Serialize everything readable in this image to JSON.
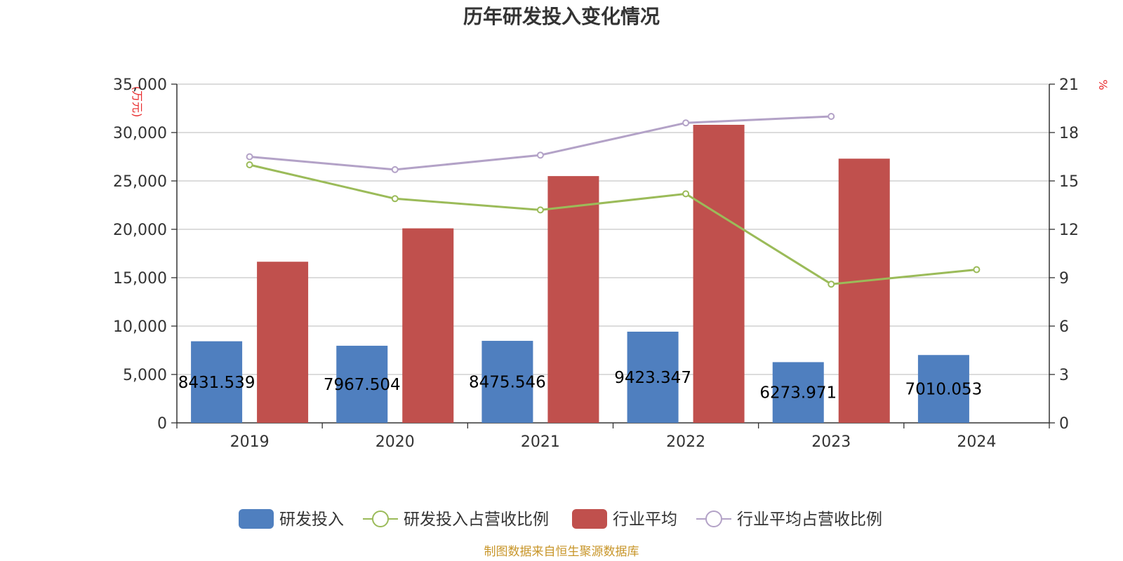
{
  "chart_data": {
    "type": "bar",
    "title": "历年研发投入变化情况",
    "categories": [
      "2019",
      "2020",
      "2021",
      "2022",
      "2023",
      "2024"
    ],
    "y_left": {
      "unit": "(万元)",
      "range": [
        0,
        35000
      ],
      "ticks": [
        "0",
        "5,000",
        "10,000",
        "15,000",
        "20,000",
        "25,000",
        "30,000",
        "35,000"
      ]
    },
    "y_right": {
      "unit": "%",
      "range": [
        0,
        21
      ],
      "ticks": [
        "0",
        "3",
        "6",
        "9",
        "12",
        "15",
        "18",
        "21"
      ]
    },
    "grid": true,
    "legend_position": "bottom",
    "series": [
      {
        "name": "研发投入",
        "type": "bar",
        "axis": "left",
        "color": "#4f7fbf",
        "values": [
          8431.539,
          7967.504,
          8475.546,
          9423.347,
          6273.971,
          7010.053
        ],
        "labels": [
          "8431.539",
          "7967.504",
          "8475.546",
          "9423.347",
          "6273.971",
          "7010.053"
        ]
      },
      {
        "name": "研发投入占营收比例",
        "type": "line",
        "axis": "right",
        "color": "#9bbb59",
        "values": [
          16.0,
          13.9,
          13.2,
          14.2,
          8.6,
          9.5
        ]
      },
      {
        "name": "行业平均",
        "type": "bar",
        "axis": "left",
        "color": "#c0504d",
        "values": [
          16650,
          20100,
          25500,
          30800,
          27300,
          null
        ]
      },
      {
        "name": "行业平均占营收比例",
        "type": "line",
        "axis": "right",
        "color": "#b3a2c7",
        "values": [
          16.5,
          15.7,
          16.6,
          18.6,
          19.0,
          null
        ]
      }
    ]
  },
  "source_note": "制图数据来自恒生聚源数据库"
}
